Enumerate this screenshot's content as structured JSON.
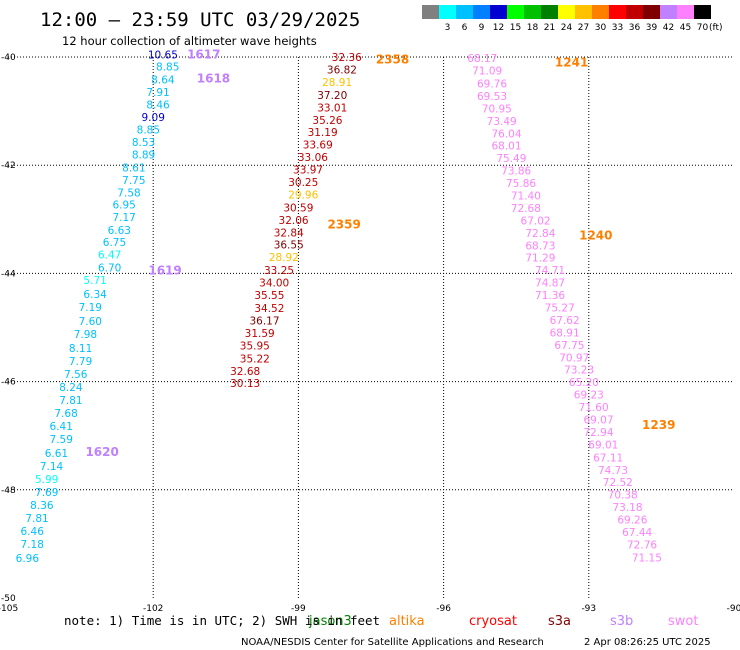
{
  "header": {
    "title": "12:00 — 23:59 UTC 03/29/2025",
    "subtitle": "12 hour collection of altimeter wave heights"
  },
  "colorbar": {
    "unit": "(ft)",
    "swatches": [
      {
        "label": "",
        "color": "#808080"
      },
      {
        "label": "3",
        "color": "#00ffff"
      },
      {
        "label": "6",
        "color": "#00c0ff"
      },
      {
        "label": "9",
        "color": "#0080ff"
      },
      {
        "label": "12",
        "color": "#0000d0"
      },
      {
        "label": "15",
        "color": "#00ff00"
      },
      {
        "label": "18",
        "color": "#00c000"
      },
      {
        "label": "21",
        "color": "#008000"
      },
      {
        "label": "24",
        "color": "#ffff00"
      },
      {
        "label": "27",
        "color": "#ffc000"
      },
      {
        "label": "30",
        "color": "#ff8000"
      },
      {
        "label": "33",
        "color": "#ff0000"
      },
      {
        "label": "36",
        "color": "#c00000"
      },
      {
        "label": "39",
        "color": "#800000"
      },
      {
        "label": "42",
        "color": "#c080ff"
      },
      {
        "label": "45",
        "color": "#ff80ff"
      },
      {
        "label": "70",
        "color": "#000000"
      }
    ]
  },
  "footer": {
    "note": "note:  1) Time is in UTC; 2) SWH is in feet",
    "credit": "NOAA/NESDIS Center for Satellite Applications and Research",
    "timestamp": "2 Apr 08:26:25 UTC 2025"
  },
  "chart_data": {
    "type": "scatter",
    "xlim": [
      -105,
      -90
    ],
    "ylim": [
      -50,
      -40
    ],
    "xticks": [
      "-105",
      "-102",
      "-99",
      "-96",
      "-93",
      "-90"
    ],
    "yticks": [
      "-40",
      "-42",
      "-44",
      "-46",
      "-48",
      "-50"
    ],
    "grid": true,
    "legend": [
      {
        "name": "jason3",
        "color": "#008000"
      },
      {
        "name": "altika",
        "color": "#ff8000"
      },
      {
        "name": "cryosat",
        "color": "#ff0000"
      },
      {
        "name": "s3a",
        "color": "#800000"
      },
      {
        "name": "s3b",
        "color": "#c080ff"
      },
      {
        "name": "swot",
        "color": "#ff80ff"
      }
    ],
    "time_labels": [
      {
        "text": "1617",
        "lon": -101.3,
        "lat": -39.95,
        "color": "#c080ff"
      },
      {
        "text": "1618",
        "lon": -101.1,
        "lat": -40.4,
        "color": "#c080ff"
      },
      {
        "text": "1619",
        "lon": -102.1,
        "lat": -43.95,
        "color": "#c080ff"
      },
      {
        "text": "1620",
        "lon": -103.4,
        "lat": -47.3,
        "color": "#c080ff"
      },
      {
        "text": "2358",
        "lon": -97.4,
        "lat": -40.05,
        "color": "#ff8000"
      },
      {
        "text": "2359",
        "lon": -98.4,
        "lat": -43.1,
        "color": "#ff8000"
      },
      {
        "text": "1241",
        "lon": -93.7,
        "lat": -40.1,
        "color": "#ff8000"
      },
      {
        "text": "1240",
        "lon": -93.2,
        "lat": -43.3,
        "color": "#ff8000"
      },
      {
        "text": "1239",
        "lon": -91.9,
        "lat": -46.8,
        "color": "#ff8000"
      }
    ],
    "series": [
      {
        "name": "s3b",
        "points": [
          {
            "lon": -101.8,
            "lat": -39.95,
            "v": 10.65,
            "c": "#0000d0"
          },
          {
            "lon": -101.7,
            "lat": -40.18,
            "v": 8.85,
            "c": "#00c0ff"
          },
          {
            "lon": -101.8,
            "lat": -40.42,
            "v": 8.64,
            "c": "#00c0ff"
          },
          {
            "lon": -101.9,
            "lat": -40.65,
            "v": 7.91,
            "c": "#00c0ff"
          },
          {
            "lon": -101.9,
            "lat": -40.88,
            "v": 8.46,
            "c": "#00c0ff"
          },
          {
            "lon": -102.0,
            "lat": -41.11,
            "v": 9.09,
            "c": "#0000d0"
          },
          {
            "lon": -102.1,
            "lat": -41.34,
            "v": 8.85,
            "c": "#00c0ff"
          },
          {
            "lon": -102.2,
            "lat": -41.57,
            "v": 8.53,
            "c": "#00c0ff"
          },
          {
            "lon": -102.2,
            "lat": -41.8,
            "v": 8.89,
            "c": "#00c0ff"
          },
          {
            "lon": -102.4,
            "lat": -42.04,
            "v": 8.61,
            "c": "#00c0ff"
          },
          {
            "lon": -102.4,
            "lat": -42.27,
            "v": 7.75,
            "c": "#00c0ff"
          },
          {
            "lon": -102.5,
            "lat": -42.5,
            "v": 7.58,
            "c": "#00c0ff"
          },
          {
            "lon": -102.6,
            "lat": -42.73,
            "v": 6.95,
            "c": "#00c0ff"
          },
          {
            "lon": -102.6,
            "lat": -42.96,
            "v": 7.17,
            "c": "#00c0ff"
          },
          {
            "lon": -102.7,
            "lat": -43.2,
            "v": 6.63,
            "c": "#00c0ff"
          },
          {
            "lon": -102.8,
            "lat": -43.42,
            "v": 6.75,
            "c": "#00c0ff"
          },
          {
            "lon": -102.9,
            "lat": -43.65,
            "v": 6.47,
            "c": "#00ffff"
          },
          {
            "lon": -102.9,
            "lat": -43.89,
            "v": 6.7,
            "c": "#00c0ff"
          },
          {
            "lon": -103.2,
            "lat": -44.12,
            "v": 5.71,
            "c": "#00ffff"
          },
          {
            "lon": -103.2,
            "lat": -44.38,
            "v": 6.34,
            "c": "#00c0ff"
          },
          {
            "lon": -103.3,
            "lat": -44.62,
            "v": 7.19,
            "c": "#00c0ff"
          },
          {
            "lon": -103.3,
            "lat": -44.88,
            "v": 7.6,
            "c": "#00c0ff"
          },
          {
            "lon": -103.4,
            "lat": -45.12,
            "v": 7.98,
            "c": "#00c0ff"
          },
          {
            "lon": -103.5,
            "lat": -45.38,
            "v": 8.11,
            "c": "#00c0ff"
          },
          {
            "lon": -103.5,
            "lat": -45.62,
            "v": 7.79,
            "c": "#00c0ff"
          },
          {
            "lon": -103.6,
            "lat": -45.86,
            "v": 7.56,
            "c": "#00c0ff"
          },
          {
            "lon": -103.7,
            "lat": -46.1,
            "v": 8.24,
            "c": "#00c0ff"
          },
          {
            "lon": -103.7,
            "lat": -46.34,
            "v": 7.81,
            "c": "#00c0ff"
          },
          {
            "lon": -103.8,
            "lat": -46.58,
            "v": 7.68,
            "c": "#00c0ff"
          },
          {
            "lon": -103.9,
            "lat": -46.82,
            "v": 6.41,
            "c": "#00c0ff"
          },
          {
            "lon": -103.9,
            "lat": -47.06,
            "v": 7.59,
            "c": "#00c0ff"
          },
          {
            "lon": -104.0,
            "lat": -47.32,
            "v": 6.61,
            "c": "#00c0ff"
          },
          {
            "lon": -104.1,
            "lat": -47.56,
            "v": 7.14,
            "c": "#00c0ff"
          },
          {
            "lon": -104.2,
            "lat": -47.8,
            "v": 5.99,
            "c": "#00ffff"
          },
          {
            "lon": -104.2,
            "lat": -48.04,
            "v": 7.69,
            "c": "#00c0ff"
          },
          {
            "lon": -104.3,
            "lat": -48.28,
            "v": 8.36,
            "c": "#00c0ff"
          },
          {
            "lon": -104.4,
            "lat": -48.52,
            "v": 7.81,
            "c": "#00c0ff"
          },
          {
            "lon": -104.5,
            "lat": -48.76,
            "v": 6.46,
            "c": "#00c0ff"
          },
          {
            "lon": -104.5,
            "lat": -49.0,
            "v": 7.18,
            "c": "#00c0ff"
          },
          {
            "lon": -104.6,
            "lat": -49.26,
            "v": 6.96,
            "c": "#00c0ff"
          }
        ]
      },
      {
        "name": "altika",
        "points": [
          {
            "lon": -98.0,
            "lat": -40.0,
            "v": 32.36,
            "c": "#c00000"
          },
          {
            "lon": -98.1,
            "lat": -40.23,
            "v": 36.82,
            "c": "#800000"
          },
          {
            "lon": -98.2,
            "lat": -40.46,
            "v": 28.91,
            "c": "#ffc000"
          },
          {
            "lon": -98.3,
            "lat": -40.7,
            "v": 37.2,
            "c": "#800000"
          },
          {
            "lon": -98.3,
            "lat": -40.93,
            "v": 33.01,
            "c": "#c00000"
          },
          {
            "lon": -98.4,
            "lat": -41.16,
            "v": 35.26,
            "c": "#c00000"
          },
          {
            "lon": -98.5,
            "lat": -41.39,
            "v": 31.19,
            "c": "#c00000"
          },
          {
            "lon": -98.6,
            "lat": -41.62,
            "v": 33.69,
            "c": "#c00000"
          },
          {
            "lon": -98.7,
            "lat": -41.85,
            "v": 33.06,
            "c": "#c00000"
          },
          {
            "lon": -98.8,
            "lat": -42.08,
            "v": 33.97,
            "c": "#c00000"
          },
          {
            "lon": -98.9,
            "lat": -42.31,
            "v": 30.25,
            "c": "#c00000"
          },
          {
            "lon": -98.9,
            "lat": -42.54,
            "v": 29.96,
            "c": "#ffc000"
          },
          {
            "lon": -99.0,
            "lat": -42.78,
            "v": 30.59,
            "c": "#c00000"
          },
          {
            "lon": -99.1,
            "lat": -43.01,
            "v": 32.06,
            "c": "#c00000"
          },
          {
            "lon": -99.2,
            "lat": -43.24,
            "v": 32.84,
            "c": "#c00000"
          },
          {
            "lon": -99.2,
            "lat": -43.47,
            "v": 36.55,
            "c": "#800000"
          },
          {
            "lon": -99.3,
            "lat": -43.7,
            "v": 28.92,
            "c": "#ffc000"
          },
          {
            "lon": -99.4,
            "lat": -43.94,
            "v": 33.25,
            "c": "#c00000"
          },
          {
            "lon": -99.5,
            "lat": -44.17,
            "v": 34.0,
            "c": "#c00000"
          },
          {
            "lon": -99.6,
            "lat": -44.4,
            "v": 35.55,
            "c": "#c00000"
          },
          {
            "lon": -99.6,
            "lat": -44.64,
            "v": 34.52,
            "c": "#c00000"
          },
          {
            "lon": -99.7,
            "lat": -44.87,
            "v": 36.17,
            "c": "#800000"
          },
          {
            "lon": -99.8,
            "lat": -45.1,
            "v": 31.59,
            "c": "#c00000"
          },
          {
            "lon": -99.9,
            "lat": -45.33,
            "v": 35.95,
            "c": "#c00000"
          },
          {
            "lon": -99.9,
            "lat": -45.57,
            "v": 35.22,
            "c": "#c00000"
          },
          {
            "lon": -100.1,
            "lat": -45.8,
            "v": 32.68,
            "c": "#c00000"
          },
          {
            "lon": -100.1,
            "lat": -46.03,
            "v": 30.13,
            "c": "#c00000"
          }
        ]
      },
      {
        "name": "swot",
        "points": [
          {
            "lon": -95.2,
            "lat": -40.02,
            "v": 68.17,
            "c": "#ff80ff"
          },
          {
            "lon": -95.1,
            "lat": -40.25,
            "v": 71.09,
            "c": "#ff80ff"
          },
          {
            "lon": -95.0,
            "lat": -40.49,
            "v": 69.76,
            "c": "#ff80ff"
          },
          {
            "lon": -95.0,
            "lat": -40.72,
            "v": 69.53,
            "c": "#ff80ff"
          },
          {
            "lon": -94.9,
            "lat": -40.95,
            "v": 70.95,
            "c": "#ff80ff"
          },
          {
            "lon": -94.8,
            "lat": -41.18,
            "v": 73.49,
            "c": "#ff80ff"
          },
          {
            "lon": -94.7,
            "lat": -41.41,
            "v": 76.04,
            "c": "#ff80ff"
          },
          {
            "lon": -94.7,
            "lat": -41.64,
            "v": 68.01,
            "c": "#ff80ff"
          },
          {
            "lon": -94.6,
            "lat": -41.87,
            "v": 75.49,
            "c": "#ff80ff"
          },
          {
            "lon": -94.5,
            "lat": -42.1,
            "v": 73.86,
            "c": "#ff80ff"
          },
          {
            "lon": -94.4,
            "lat": -42.33,
            "v": 75.86,
            "c": "#ff80ff"
          },
          {
            "lon": -94.3,
            "lat": -42.56,
            "v": 71.4,
            "c": "#ff80ff"
          },
          {
            "lon": -94.3,
            "lat": -42.79,
            "v": 72.68,
            "c": "#ff80ff"
          },
          {
            "lon": -94.1,
            "lat": -43.02,
            "v": 67.02,
            "c": "#ff80ff"
          },
          {
            "lon": -94.0,
            "lat": -43.25,
            "v": 72.84,
            "c": "#ff80ff"
          },
          {
            "lon": -94.0,
            "lat": -43.48,
            "v": 68.73,
            "c": "#ff80ff"
          },
          {
            "lon": -94.0,
            "lat": -43.71,
            "v": 71.29,
            "c": "#ff80ff"
          },
          {
            "lon": -93.8,
            "lat": -43.94,
            "v": 74.71,
            "c": "#ff80ff"
          },
          {
            "lon": -93.8,
            "lat": -44.17,
            "v": 74.87,
            "c": "#ff80ff"
          },
          {
            "lon": -93.8,
            "lat": -44.4,
            "v": 71.36,
            "c": "#ff80ff"
          },
          {
            "lon": -93.6,
            "lat": -44.63,
            "v": 75.27,
            "c": "#ff80ff"
          },
          {
            "lon": -93.5,
            "lat": -44.86,
            "v": 67.62,
            "c": "#ff80ff"
          },
          {
            "lon": -93.5,
            "lat": -45.09,
            "v": 68.91,
            "c": "#ff80ff"
          },
          {
            "lon": -93.4,
            "lat": -45.32,
            "v": 67.75,
            "c": "#ff80ff"
          },
          {
            "lon": -93.3,
            "lat": -45.55,
            "v": 70.97,
            "c": "#ff80ff"
          },
          {
            "lon": -93.2,
            "lat": -45.78,
            "v": 73.23,
            "c": "#ff80ff"
          },
          {
            "lon": -93.1,
            "lat": -46.01,
            "v": 65.2,
            "c": "#ff80ff"
          },
          {
            "lon": -93.0,
            "lat": -46.24,
            "v": 69.23,
            "c": "#ff80ff"
          },
          {
            "lon": -92.9,
            "lat": -46.47,
            "v": 71.6,
            "c": "#ff80ff"
          },
          {
            "lon": -92.8,
            "lat": -46.7,
            "v": 69.07,
            "c": "#ff80ff"
          },
          {
            "lon": -92.8,
            "lat": -46.93,
            "v": 72.94,
            "c": "#ff80ff"
          },
          {
            "lon": -92.7,
            "lat": -47.16,
            "v": 69.01,
            "c": "#ff80ff"
          },
          {
            "lon": -92.6,
            "lat": -47.4,
            "v": 67.11,
            "c": "#ff80ff"
          },
          {
            "lon": -92.5,
            "lat": -47.63,
            "v": 74.73,
            "c": "#ff80ff"
          },
          {
            "lon": -92.4,
            "lat": -47.86,
            "v": 72.52,
            "c": "#ff80ff"
          },
          {
            "lon": -92.3,
            "lat": -48.09,
            "v": 70.38,
            "c": "#ff80ff"
          },
          {
            "lon": -92.2,
            "lat": -48.32,
            "v": 73.18,
            "c": "#ff80ff"
          },
          {
            "lon": -92.1,
            "lat": -48.55,
            "v": 69.26,
            "c": "#ff80ff"
          },
          {
            "lon": -92.0,
            "lat": -48.78,
            "v": 67.44,
            "c": "#ff80ff"
          },
          {
            "lon": -91.9,
            "lat": -49.01,
            "v": 72.76,
            "c": "#ff80ff"
          },
          {
            "lon": -91.8,
            "lat": -49.25,
            "v": 71.15,
            "c": "#ff80ff"
          }
        ]
      }
    ]
  }
}
